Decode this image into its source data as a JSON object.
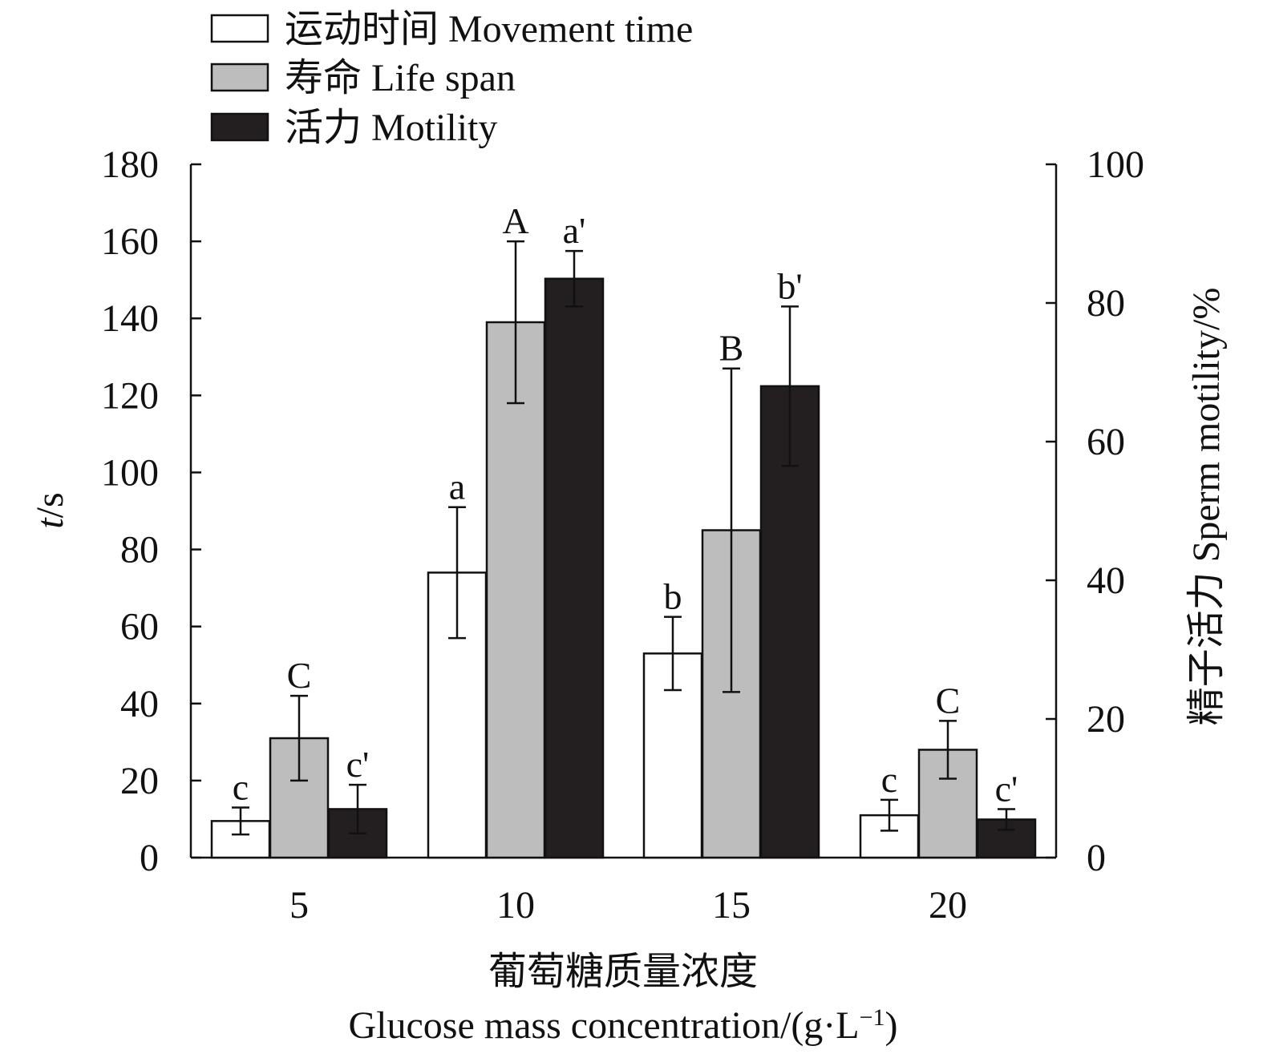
{
  "chart_data": {
    "type": "bar",
    "categories": [
      "5",
      "10",
      "15",
      "20"
    ],
    "xlabel_cn": "葡萄糖质量浓度",
    "xlabel_en": "Glucose mass concentration/(g·L",
    "xlabel_en_sup": "−1",
    "xlabel_en_tail": ")",
    "ylabel_left_var": "t",
    "ylabel_left_unit": "/s",
    "ylabel_right": "精子活力 Sperm motility/%",
    "ylim_left": [
      0,
      180
    ],
    "yticks_left": [
      0,
      20,
      40,
      60,
      80,
      100,
      120,
      140,
      160,
      180
    ],
    "ylim_right": [
      0,
      100
    ],
    "yticks_right": [
      0,
      20,
      40,
      60,
      80,
      100
    ],
    "legend_position": "top-left",
    "series": [
      {
        "name": "运动时间 Movement time",
        "axis": "left",
        "color": "#ffffff",
        "values": [
          9.5,
          74,
          53,
          11
        ],
        "errors": [
          3.5,
          17,
          9.5,
          4
        ],
        "labels": [
          "c",
          "a",
          "b",
          "c"
        ]
      },
      {
        "name": "寿命 Life span",
        "axis": "left",
        "color": "#bdbdbd",
        "values": [
          31,
          139,
          85,
          28
        ],
        "errors": [
          11,
          21,
          42,
          7.5
        ],
        "labels": [
          "C",
          "A",
          "B",
          "C"
        ]
      },
      {
        "name": "活力 Motility",
        "axis": "right",
        "color": "#231f20",
        "values": [
          7,
          83.5,
          68,
          5.5
        ],
        "errors": [
          3.5,
          4,
          11.5,
          1.5
        ],
        "labels": [
          "c'",
          "a'",
          "b'",
          "c'"
        ]
      }
    ]
  }
}
